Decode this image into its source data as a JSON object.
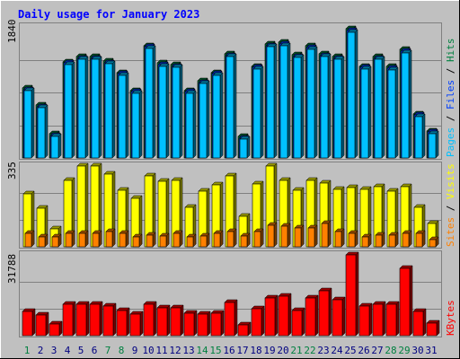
{
  "title": "Daily usage for January 2023",
  "colors": {
    "background": "#c0c0c0",
    "title": "#0000ff",
    "hits": "#008040",
    "files": "#0040ff",
    "pages": "#00c0ff",
    "visits": "#ffff00",
    "sites": "#ff8000",
    "kbytes": "#ff0000",
    "weekend_label": "#008040",
    "weekday_label": "#000080"
  },
  "chart_data": [
    {
      "type": "bar",
      "panel": "hits-files-pages",
      "max_label": "1840",
      "ylim": [
        0,
        1840
      ],
      "categories": [
        "1",
        "2",
        "3",
        "4",
        "5",
        "6",
        "7",
        "8",
        "9",
        "10",
        "11",
        "12",
        "13",
        "14",
        "15",
        "16",
        "17",
        "18",
        "19",
        "20",
        "21",
        "22",
        "23",
        "24",
        "25",
        "26",
        "27",
        "28",
        "29",
        "30",
        "31"
      ],
      "legend": [
        "Pages",
        "Files",
        "Hits"
      ],
      "series": [
        {
          "name": "Hits",
          "values": [
            980,
            740,
            340,
            1350,
            1420,
            1420,
            1360,
            1200,
            950,
            1580,
            1330,
            1310,
            950,
            1080,
            1200,
            1460,
            300,
            1290,
            1600,
            1620,
            1450,
            1570,
            1460,
            1420,
            1810,
            1290,
            1420,
            1280,
            1520,
            620,
            380
          ]
        },
        {
          "name": "Files",
          "values": [
            960,
            720,
            320,
            1330,
            1400,
            1400,
            1340,
            1180,
            930,
            1560,
            1310,
            1290,
            930,
            1060,
            1180,
            1440,
            280,
            1270,
            1580,
            1600,
            1430,
            1550,
            1440,
            1400,
            1790,
            1270,
            1400,
            1260,
            1500,
            600,
            360
          ]
        },
        {
          "name": "Pages",
          "values": [
            940,
            700,
            300,
            1310,
            1380,
            1380,
            1320,
            1160,
            910,
            1540,
            1290,
            1270,
            910,
            1040,
            1160,
            1420,
            260,
            1250,
            1560,
            1580,
            1410,
            1530,
            1420,
            1380,
            1770,
            1250,
            1380,
            1240,
            1480,
            580,
            340
          ]
        }
      ]
    },
    {
      "type": "bar",
      "panel": "visits-sites",
      "max_label": "335",
      "ylim": [
        0,
        335
      ],
      "categories": [
        "1",
        "2",
        "3",
        "4",
        "5",
        "6",
        "7",
        "8",
        "9",
        "10",
        "11",
        "12",
        "13",
        "14",
        "15",
        "16",
        "17",
        "18",
        "19",
        "20",
        "21",
        "22",
        "23",
        "24",
        "25",
        "26",
        "27",
        "28",
        "29",
        "30",
        "31"
      ],
      "legend": [
        "Sites",
        "Visits"
      ],
      "series": [
        {
          "name": "Visits",
          "values": [
            220,
            160,
            75,
            275,
            335,
            335,
            300,
            235,
            200,
            295,
            270,
            275,
            165,
            230,
            255,
            295,
            125,
            260,
            335,
            275,
            235,
            275,
            265,
            240,
            245,
            240,
            250,
            230,
            250,
            165,
            95
          ]
        },
        {
          "name": "Sites",
          "values": [
            55,
            40,
            40,
            55,
            55,
            55,
            65,
            55,
            40,
            50,
            45,
            55,
            40,
            45,
            55,
            65,
            45,
            65,
            90,
            85,
            80,
            80,
            95,
            65,
            55,
            40,
            50,
            50,
            55,
            55,
            30
          ]
        }
      ]
    },
    {
      "type": "bar",
      "panel": "kbytes",
      "max_label": "31788",
      "ylim": [
        0,
        31788
      ],
      "categories": [
        "1",
        "2",
        "3",
        "4",
        "5",
        "6",
        "7",
        "8",
        "9",
        "10",
        "11",
        "12",
        "13",
        "14",
        "15",
        "16",
        "17",
        "18",
        "19",
        "20",
        "21",
        "22",
        "23",
        "24",
        "25",
        "26",
        "27",
        "28",
        "29",
        "30",
        "31"
      ],
      "legend": [
        "KBytes"
      ],
      "series": [
        {
          "name": "KBytes",
          "values": [
            9500,
            8000,
            4500,
            12500,
            12500,
            12500,
            11800,
            10000,
            8500,
            12300,
            11000,
            10800,
            9000,
            8600,
            9000,
            13000,
            4200,
            10500,
            15000,
            15500,
            9800,
            15000,
            17500,
            14000,
            31788,
            11500,
            12500,
            12500,
            26500,
            9500,
            4800
          ]
        }
      ]
    }
  ]
}
